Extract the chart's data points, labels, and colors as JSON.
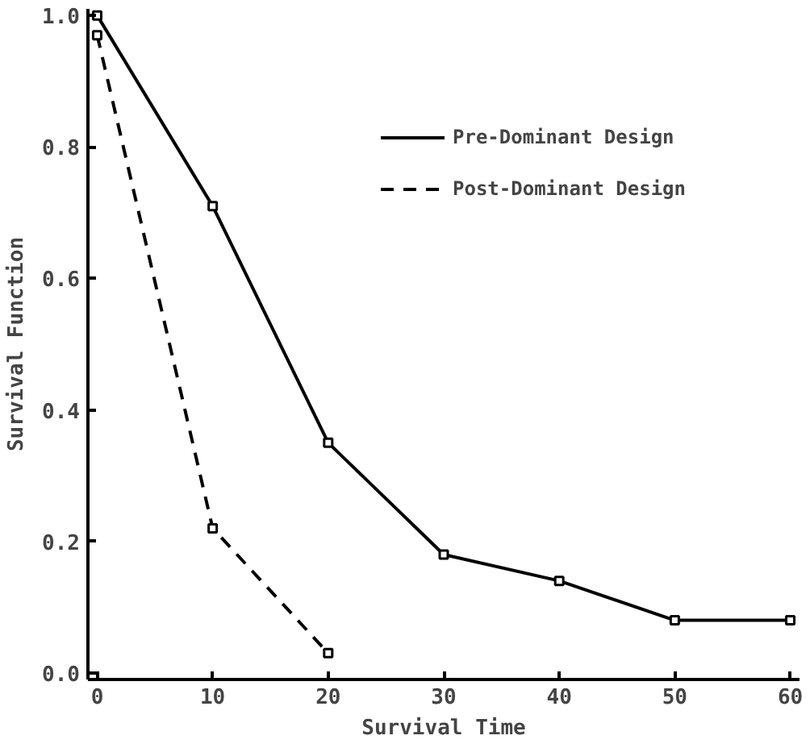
{
  "chart_data": {
    "type": "line",
    "xlabel": "Survival Time",
    "ylabel": "Survival Function",
    "x": [
      0,
      10,
      20,
      30,
      40,
      50,
      60
    ],
    "series": [
      {
        "name": "Pre-Dominant Design",
        "color": "#000000",
        "line_style": "solid",
        "values": [
          1.0,
          0.71,
          0.35,
          0.18,
          0.14,
          0.08,
          0.08
        ]
      },
      {
        "name": "Post-Dominant Design",
        "color": "#000000",
        "line_style": "dashed",
        "values": [
          0.97,
          0.22,
          0.03,
          null,
          null,
          null,
          null
        ]
      }
    ],
    "xlim": [
      -0.8,
      60.8
    ],
    "xticks": [
      0,
      10,
      20,
      30,
      40,
      50,
      60
    ],
    "ylim": [
      -0.01,
      1.01
    ],
    "yticks": [
      {
        "value": 0,
        "label": "0.0"
      },
      0.2,
      0.4,
      0.6,
      0.8,
      {
        "value": 1.0,
        "label": "1.0"
      }
    ],
    "marker": "square",
    "grid": false,
    "legend": "top right"
  }
}
